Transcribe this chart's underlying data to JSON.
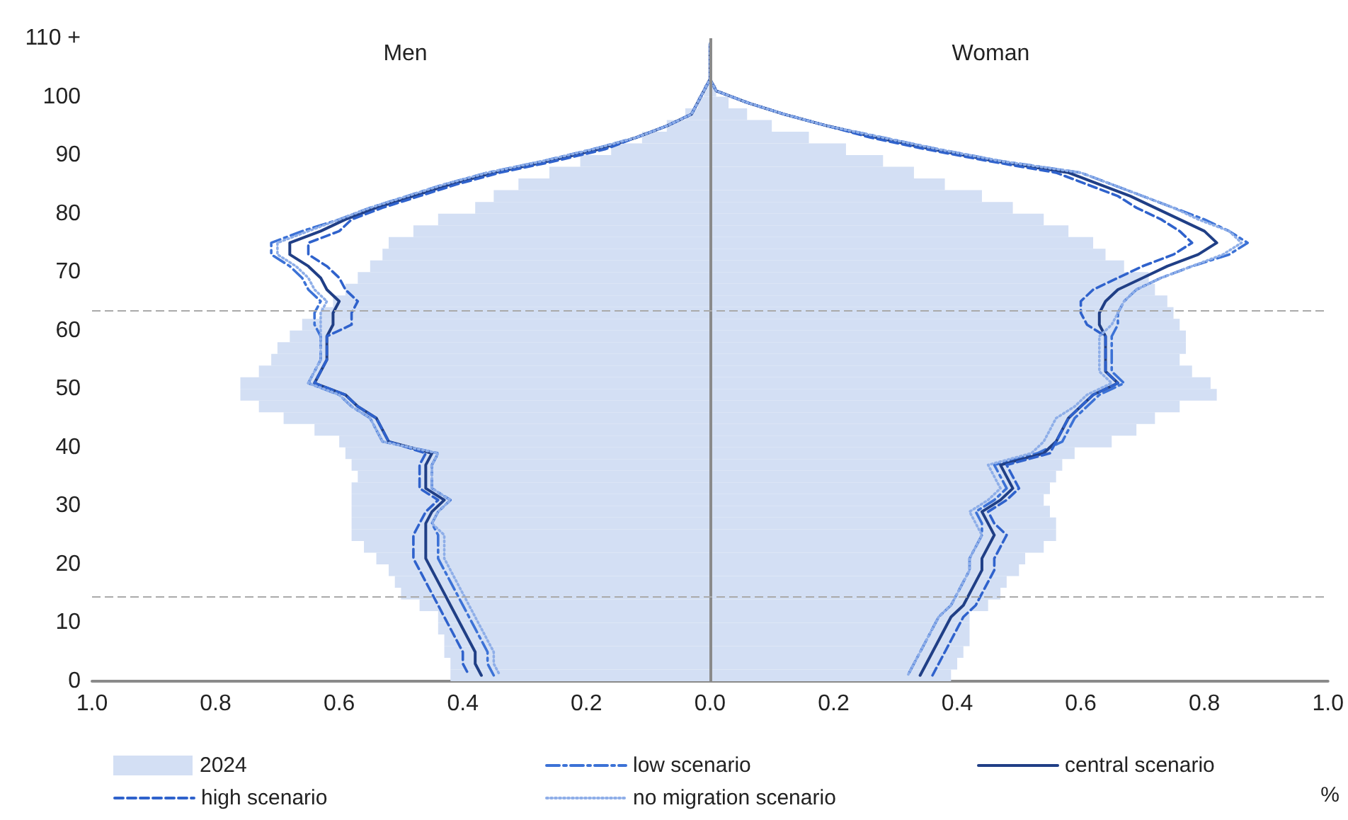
{
  "chart_data": {
    "type": "line",
    "orientation": "horizontal",
    "xlabel": "%",
    "annotations": [
      "Men",
      "Woman"
    ],
    "x": [
      109,
      107,
      105,
      103,
      101,
      99,
      97,
      95,
      93,
      91,
      89,
      87,
      85,
      83,
      81,
      79,
      77,
      75,
      73,
      71,
      69,
      67,
      65,
      63,
      61,
      59,
      57,
      55,
      53,
      51,
      49,
      47,
      45,
      43,
      41,
      39,
      37,
      35,
      33,
      31,
      29,
      27,
      25,
      23,
      21,
      19,
      17,
      15,
      13,
      11,
      9,
      7,
      5,
      3,
      1
    ],
    "xlim": [
      -1,
      1
    ],
    "xticks": [
      {
        "value": -1,
        "label": "1.0"
      },
      {
        "value": -0.8,
        "label": "0.8"
      },
      {
        "value": -0.6,
        "label": "0.6"
      },
      {
        "value": -0.4,
        "label": "0.4"
      },
      {
        "value": -0.2,
        "label": "0.2"
      },
      {
        "value": 0,
        "label": "0.0"
      },
      0.2,
      0.4,
      0.6,
      0.8,
      {
        "value": 1,
        "label": "1.0"
      }
    ],
    "ylim": [
      0,
      110
    ],
    "yticks": [
      0,
      10,
      20,
      30,
      40,
      50,
      60,
      70,
      80,
      90,
      100,
      {
        "value": 110,
        "label": "110 +"
      }
    ],
    "grid": false,
    "legend": "bottom",
    "marker": "none",
    "stacked": true,
    "ref_lines": [
      {
        "axis": "x",
        "value": 0,
        "color": "#8a8a8a",
        "line_style": "solid"
      },
      {
        "axis": "y",
        "value": 63.5,
        "color": "#aaaaaa",
        "line_style": "dashed"
      },
      {
        "axis": "y",
        "value": 14.5,
        "color": "#aaaaaa",
        "line_style": "dashed"
      }
    ],
    "series": [
      {
        "name": "2024",
        "type": "bar",
        "color": "#d3dff4",
        "values": [
          0,
          0,
          0,
          0,
          -0.01,
          -0.02,
          -0.04,
          -0.07,
          -0.11,
          -0.16,
          -0.21,
          -0.26,
          -0.31,
          -0.35,
          -0.38,
          -0.44,
          -0.48,
          -0.52,
          -0.53,
          -0.55,
          -0.57,
          -0.59,
          -0.61,
          -0.63,
          -0.66,
          -0.68,
          -0.7,
          -0.71,
          -0.73,
          -0.76,
          -0.76,
          -0.73,
          -0.69,
          -0.64,
          -0.6,
          -0.59,
          -0.58,
          -0.57,
          -0.58,
          -0.58,
          -0.58,
          -0.58,
          -0.58,
          -0.56,
          -0.54,
          -0.52,
          -0.51,
          -0.5,
          -0.47,
          -0.44,
          -0.44,
          -0.43,
          -0.43,
          -0.42,
          -0.42
        ]
      },
      {
        "type": "bar",
        "color": "#d3dff4",
        "values": [
          0,
          0,
          0,
          0,
          0.01,
          0.03,
          0.06,
          0.1,
          0.16,
          0.22,
          0.28,
          0.33,
          0.38,
          0.44,
          0.49,
          0.54,
          0.58,
          0.62,
          0.64,
          0.67,
          0.71,
          0.72,
          0.74,
          0.75,
          0.76,
          0.77,
          0.77,
          0.76,
          0.78,
          0.81,
          0.82,
          0.76,
          0.72,
          0.69,
          0.65,
          0.59,
          0.57,
          0.56,
          0.55,
          0.54,
          0.55,
          0.56,
          0.56,
          0.54,
          0.51,
          0.5,
          0.48,
          0.47,
          0.45,
          0.42,
          0.42,
          0.42,
          0.41,
          0.4,
          0.39
        ]
      },
      {
        "name": "low scenario",
        "color": "#3c72d6",
        "line_style": "dashdot",
        "values": [
          0,
          0,
          0,
          0,
          -0.01,
          -0.02,
          -0.03,
          -0.07,
          -0.12,
          -0.19,
          -0.27,
          -0.36,
          -0.43,
          -0.49,
          -0.55,
          -0.6,
          -0.66,
          -0.71,
          -0.71,
          -0.68,
          -0.66,
          -0.65,
          -0.63,
          -0.64,
          -0.64,
          -0.63,
          -0.63,
          -0.63,
          -0.64,
          -0.65,
          -0.6,
          -0.58,
          -0.55,
          -0.54,
          -0.53,
          -0.44,
          -0.45,
          -0.45,
          -0.45,
          -0.42,
          -0.44,
          -0.45,
          -0.44,
          -0.44,
          -0.44,
          -0.43,
          -0.42,
          -0.41,
          -0.4,
          -0.39,
          -0.38,
          -0.37,
          -0.36,
          -0.36,
          -0.35
        ]
      },
      {
        "color": "#3c72d6",
        "line_style": "dashdot",
        "values": [
          0,
          0,
          0,
          0,
          0.01,
          0.06,
          0.12,
          0.19,
          0.28,
          0.37,
          0.47,
          0.6,
          0.65,
          0.7,
          0.75,
          0.8,
          0.84,
          0.87,
          0.84,
          0.78,
          0.73,
          0.69,
          0.67,
          0.66,
          0.66,
          0.65,
          0.65,
          0.65,
          0.65,
          0.67,
          0.63,
          0.61,
          0.59,
          0.58,
          0.57,
          0.53,
          0.46,
          0.47,
          0.48,
          0.46,
          0.43,
          0.44,
          0.44,
          0.43,
          0.42,
          0.42,
          0.41,
          0.4,
          0.39,
          0.37,
          0.36,
          0.35,
          0.34,
          0.33,
          0.32
        ]
      },
      {
        "name": "central scenario",
        "color": "#203f86",
        "line_style": "solid",
        "values": [
          0,
          0,
          0,
          0,
          -0.01,
          -0.02,
          -0.03,
          -0.07,
          -0.12,
          -0.18,
          -0.26,
          -0.35,
          -0.42,
          -0.48,
          -0.54,
          -0.59,
          -0.63,
          -0.68,
          -0.68,
          -0.65,
          -0.63,
          -0.62,
          -0.6,
          -0.61,
          -0.61,
          -0.62,
          -0.62,
          -0.62,
          -0.63,
          -0.64,
          -0.59,
          -0.57,
          -0.54,
          -0.53,
          -0.52,
          -0.45,
          -0.46,
          -0.46,
          -0.46,
          -0.43,
          -0.45,
          -0.46,
          -0.46,
          -0.46,
          -0.46,
          -0.45,
          -0.44,
          -0.43,
          -0.42,
          -0.41,
          -0.4,
          -0.39,
          -0.38,
          -0.38,
          -0.37
        ]
      },
      {
        "color": "#203f86",
        "line_style": "solid",
        "values": [
          0,
          0,
          0,
          0,
          0.01,
          0.06,
          0.12,
          0.19,
          0.27,
          0.36,
          0.46,
          0.58,
          0.63,
          0.68,
          0.72,
          0.76,
          0.8,
          0.82,
          0.79,
          0.74,
          0.7,
          0.66,
          0.64,
          0.63,
          0.63,
          0.64,
          0.64,
          0.64,
          0.64,
          0.66,
          0.62,
          0.6,
          0.58,
          0.57,
          0.56,
          0.54,
          0.47,
          0.48,
          0.49,
          0.47,
          0.44,
          0.45,
          0.46,
          0.45,
          0.44,
          0.44,
          0.43,
          0.42,
          0.41,
          0.39,
          0.38,
          0.37,
          0.36,
          0.35,
          0.34
        ]
      },
      {
        "name": "high scenario",
        "color": "#2f62cc",
        "line_style": "dashed",
        "values": [
          0,
          0,
          0,
          0,
          -0.01,
          -0.02,
          -0.03,
          -0.07,
          -0.12,
          -0.17,
          -0.25,
          -0.34,
          -0.41,
          -0.47,
          -0.53,
          -0.58,
          -0.6,
          -0.65,
          -0.65,
          -0.62,
          -0.6,
          -0.59,
          -0.57,
          -0.58,
          -0.58,
          -0.62,
          -0.62,
          -0.62,
          -0.63,
          -0.64,
          -0.59,
          -0.57,
          -0.54,
          -0.53,
          -0.52,
          -0.46,
          -0.47,
          -0.47,
          -0.47,
          -0.44,
          -0.46,
          -0.47,
          -0.48,
          -0.48,
          -0.48,
          -0.47,
          -0.46,
          -0.45,
          -0.44,
          -0.43,
          -0.42,
          -0.41,
          -0.4,
          -0.4,
          -0.39
        ]
      },
      {
        "color": "#2f62cc",
        "line_style": "dashed",
        "values": [
          0,
          0,
          0,
          0,
          0.01,
          0.06,
          0.12,
          0.19,
          0.26,
          0.35,
          0.45,
          0.56,
          0.61,
          0.66,
          0.69,
          0.73,
          0.76,
          0.78,
          0.75,
          0.7,
          0.66,
          0.62,
          0.6,
          0.6,
          0.61,
          0.64,
          0.64,
          0.64,
          0.64,
          0.66,
          0.62,
          0.6,
          0.58,
          0.57,
          0.56,
          0.55,
          0.48,
          0.49,
          0.5,
          0.48,
          0.45,
          0.46,
          0.48,
          0.47,
          0.46,
          0.46,
          0.45,
          0.44,
          0.43,
          0.41,
          0.4,
          0.39,
          0.38,
          0.37,
          0.36
        ]
      },
      {
        "name": "no migration scenario",
        "color": "#8eaee8",
        "line_style": "dotted",
        "values": [
          0,
          0,
          0,
          0,
          -0.01,
          -0.02,
          -0.03,
          -0.07,
          -0.12,
          -0.19,
          -0.27,
          -0.36,
          -0.43,
          -0.49,
          -0.55,
          -0.6,
          -0.65,
          -0.7,
          -0.7,
          -0.67,
          -0.65,
          -0.64,
          -0.62,
          -0.63,
          -0.63,
          -0.63,
          -0.63,
          -0.63,
          -0.64,
          -0.65,
          -0.6,
          -0.58,
          -0.55,
          -0.54,
          -0.53,
          -0.44,
          -0.45,
          -0.45,
          -0.45,
          -0.42,
          -0.44,
          -0.45,
          -0.43,
          -0.43,
          -0.43,
          -0.42,
          -0.41,
          -0.4,
          -0.39,
          -0.38,
          -0.37,
          -0.36,
          -0.35,
          -0.35,
          -0.34
        ]
      },
      {
        "color": "#8eaee8",
        "line_style": "dotted",
        "values": [
          0,
          0,
          0,
          0,
          0.01,
          0.06,
          0.12,
          0.19,
          0.28,
          0.37,
          0.47,
          0.6,
          0.65,
          0.7,
          0.75,
          0.79,
          0.84,
          0.86,
          0.83,
          0.78,
          0.73,
          0.69,
          0.67,
          0.66,
          0.65,
          0.63,
          0.63,
          0.63,
          0.63,
          0.65,
          0.61,
          0.59,
          0.56,
          0.55,
          0.54,
          0.52,
          0.45,
          0.46,
          0.47,
          0.45,
          0.42,
          0.43,
          0.44,
          0.43,
          0.42,
          0.42,
          0.41,
          0.4,
          0.39,
          0.37,
          0.36,
          0.35,
          0.34,
          0.33,
          0.32
        ]
      }
    ]
  }
}
